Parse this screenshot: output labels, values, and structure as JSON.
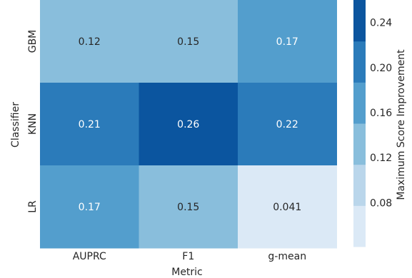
{
  "chart_data": {
    "type": "heatmap",
    "title": "",
    "xlabel": "Metric",
    "ylabel": "Classifier",
    "x_categories": [
      "AUPRC",
      "F1",
      "g-mean"
    ],
    "y_categories": [
      "GBM",
      "KNN",
      "LR"
    ],
    "values": [
      [
        0.12,
        0.15,
        0.17
      ],
      [
        0.21,
        0.26,
        0.22
      ],
      [
        0.17,
        0.15,
        0.041
      ]
    ],
    "value_labels": [
      [
        "0.12",
        "0.15",
        "0.17"
      ],
      [
        "0.21",
        "0.26",
        "0.22"
      ],
      [
        "0.17",
        "0.15",
        "0.041"
      ]
    ],
    "colorbar": {
      "label": "Maximum Score Improvement",
      "ticks": [
        "0.24",
        "0.20",
        "0.16",
        "0.12",
        "0.08"
      ],
      "tick_values": [
        0.24,
        0.2,
        0.16,
        0.12,
        0.08
      ],
      "range": [
        0.041,
        0.26
      ],
      "bin_colors": [
        "#dbe9f6",
        "#bad6eb",
        "#89bedc",
        "#539ecd",
        "#2b7bba",
        "#0b559f"
      ]
    },
    "colors": [
      "#dbe9f6",
      "#bad6eb",
      "#89bedc",
      "#539ecd",
      "#2b7bba",
      "#0b559f"
    ]
  }
}
